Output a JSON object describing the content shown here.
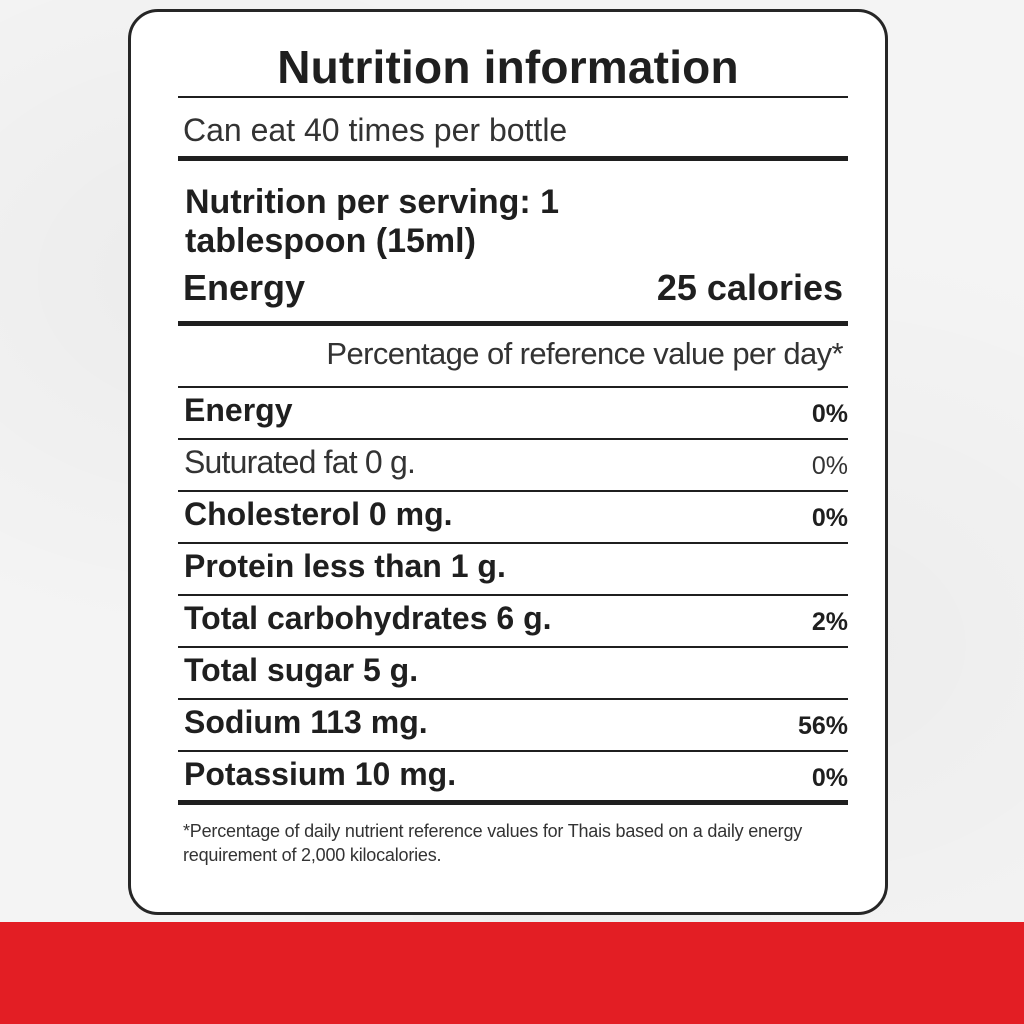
{
  "label": {
    "title": "Nutrition information",
    "servings_per_container": "Can eat 40 times per bottle",
    "serving_size": "Nutrition per serving: 1 tablespoon (15ml)",
    "energy": {
      "label": "Energy",
      "value": "25 calories"
    },
    "percent_header": "Percentage of reference value per day*",
    "rows": [
      {
        "label": "Energy",
        "percent": "0%"
      },
      {
        "label": "Suturated fat 0 g.",
        "percent": "0%"
      },
      {
        "label": "Cholesterol 0 mg.",
        "percent": "0%"
      },
      {
        "label": "Protein less than 1 g.",
        "percent": ""
      },
      {
        "label": "Total carbohydrates 6 g.",
        "percent": "2%"
      },
      {
        "label": "Total sugar 5 g.",
        "percent": ""
      },
      {
        "label": "Sodium 113 mg.",
        "percent": "56%"
      },
      {
        "label": "Potassium 10 mg.",
        "percent": "0%"
      }
    ],
    "footnote": "*Percentage of daily nutrient reference values for Thais based on a daily energy requirement of 2,000 kilocalories."
  },
  "colors": {
    "accent_band": "#e31e24",
    "text": "#1f1f1f",
    "panel_background": "#ffffff",
    "page_background": "#f4f4f4"
  }
}
